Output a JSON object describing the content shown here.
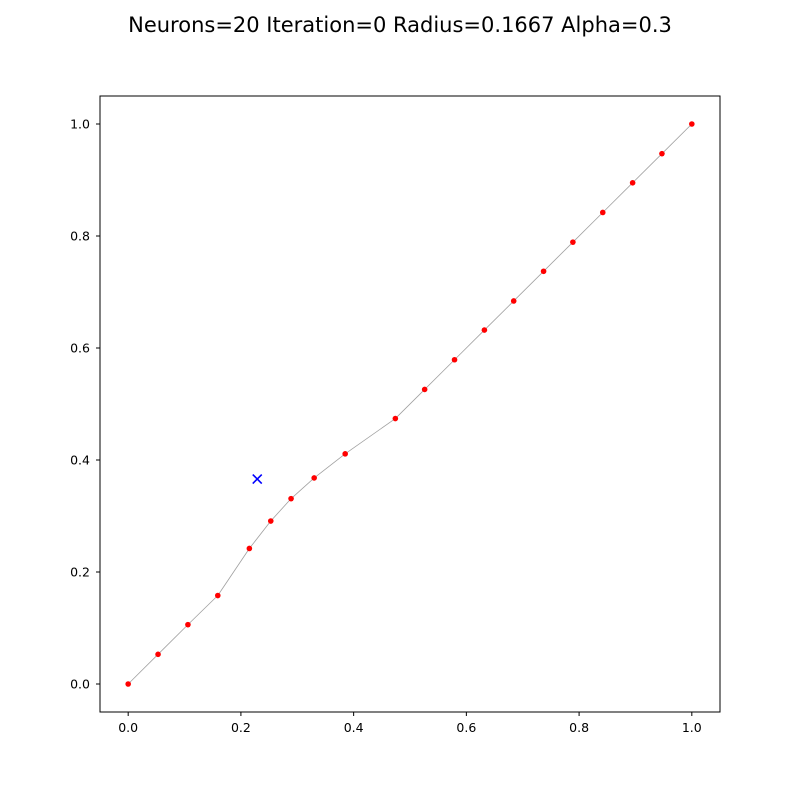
{
  "chart_data": {
    "type": "scatter",
    "title": "Neurons=20 Iteration=0 Radius=0.1667 Alpha=0.3",
    "xlim": [
      -0.05,
      1.05
    ],
    "ylim": [
      -0.05,
      1.05
    ],
    "xticks": [
      "0.0",
      "0.2",
      "0.4",
      "0.6",
      "0.8",
      "1.0"
    ],
    "yticks": [
      "0.0",
      "0.2",
      "0.4",
      "0.6",
      "0.8",
      "1.0"
    ],
    "grid": false,
    "series": [
      {
        "marker": "dot",
        "color": "#ff0000",
        "connected": true,
        "x": [
          0.0,
          0.053,
          0.106,
          0.159,
          0.215,
          0.253,
          0.289,
          0.33,
          0.385,
          0.474,
          0.526,
          0.579,
          0.632,
          0.684,
          0.737,
          0.789,
          0.842,
          0.895,
          0.947,
          1.0
        ],
        "y": [
          0.0,
          0.053,
          0.106,
          0.158,
          0.242,
          0.291,
          0.331,
          0.368,
          0.411,
          0.474,
          0.526,
          0.579,
          0.632,
          0.684,
          0.737,
          0.789,
          0.842,
          0.895,
          0.947,
          1.0
        ]
      },
      {
        "marker": "x",
        "color": "#0000ff",
        "connected": false,
        "x": [
          0.229
        ],
        "y": [
          0.366
        ]
      }
    ],
    "line_color": "#808080"
  }
}
